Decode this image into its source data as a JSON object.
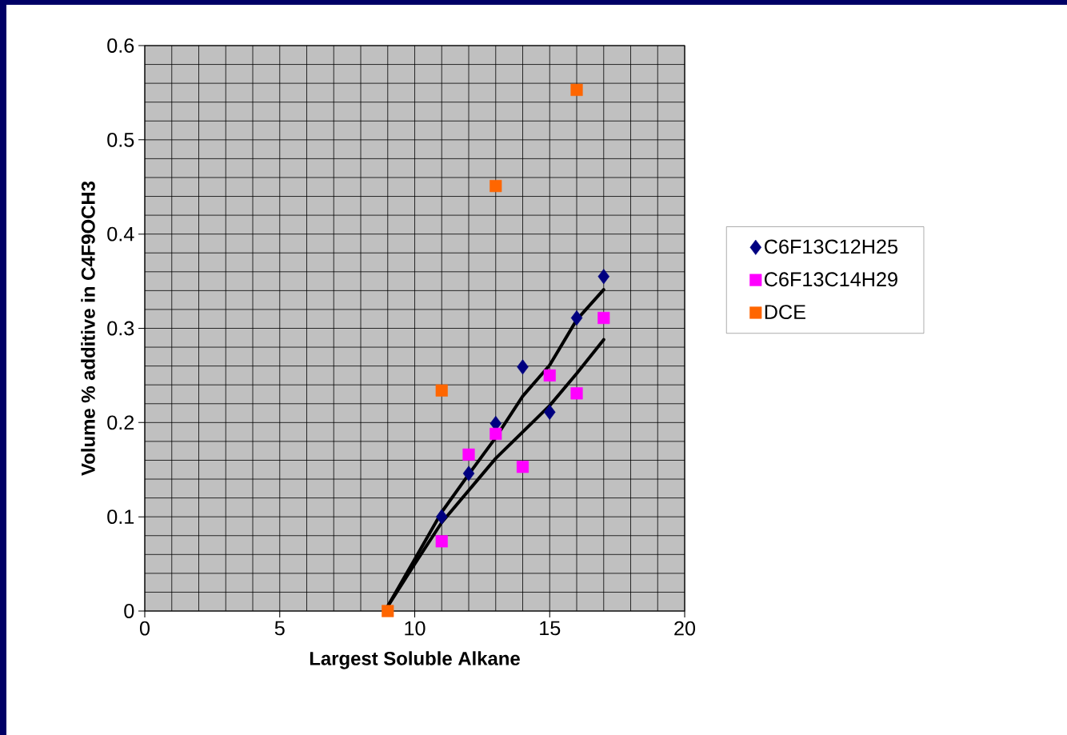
{
  "chart_data": {
    "type": "scatter",
    "xlabel": "Largest Soluble Alkane",
    "ylabel": "Volume % additive in C4F9OCH3",
    "xlim": [
      0,
      20
    ],
    "ylim": [
      0,
      0.6
    ],
    "xticks": [
      0,
      5,
      10,
      15,
      20
    ],
    "yticks": [
      0,
      0.1,
      0.2,
      0.3,
      0.4,
      0.5,
      0.6
    ],
    "grid": true,
    "legend": "right",
    "series": [
      {
        "name": "C6F13C12H25",
        "color": "#000080",
        "marker": "diamond",
        "x": [
          11,
          12,
          13,
          14,
          15,
          16,
          17
        ],
        "values": [
          0.1,
          0.146,
          0.199,
          0.259,
          0.211,
          0.311,
          0.355
        ]
      },
      {
        "name": "C6F13C14H29",
        "color": "#ff00ff",
        "marker": "square",
        "x": [
          11,
          12,
          13,
          14,
          15,
          16,
          17
        ],
        "values": [
          0.074,
          0.166,
          0.188,
          0.153,
          0.25,
          0.231,
          0.311
        ]
      },
      {
        "name": "DCE",
        "color": "#ff6600",
        "marker": "square",
        "x": [
          9,
          11,
          13,
          16
        ],
        "values": [
          0,
          0.234,
          0.451,
          0.553
        ]
      },
      {
        "type": "line",
        "color": "#000000",
        "marker": "none",
        "line_style": "solid",
        "x": [
          9,
          10,
          11,
          12,
          13,
          14,
          15,
          16,
          17
        ],
        "values": [
          0.005,
          0.055,
          0.105,
          0.145,
          0.184,
          0.228,
          0.261,
          0.309,
          0.341
        ]
      },
      {
        "type": "line",
        "color": "#000000",
        "marker": "none",
        "line_style": "solid",
        "x": [
          9,
          10,
          11,
          12,
          13,
          14,
          15,
          16,
          17
        ],
        "values": [
          0.005,
          0.05,
          0.094,
          0.128,
          0.162,
          0.19,
          0.218,
          0.252,
          0.288
        ]
      }
    ]
  }
}
